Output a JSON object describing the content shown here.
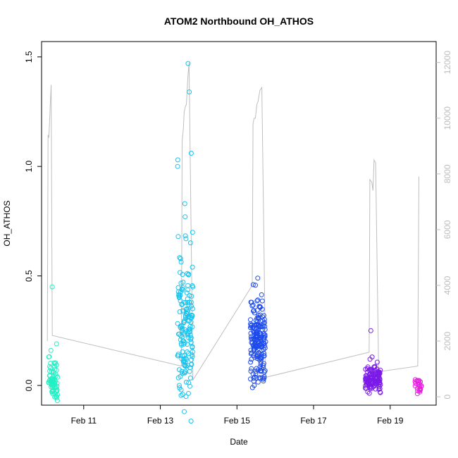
{
  "chart_data": {
    "type": "scatter",
    "title": "ATOM2 Northbound OH_ATHOS",
    "xlabel": "Date",
    "ylabel": "OH_ATHOS",
    "x_ticks": [
      "Feb 11",
      "Feb 13",
      "Feb 15",
      "Feb 17",
      "Feb 19"
    ],
    "x_tick_days": [
      11,
      13,
      15,
      17,
      19
    ],
    "xlim_days": [
      9.9,
      20.2
    ],
    "ylim": [
      -0.09,
      1.57
    ],
    "y_ticks": [
      0.0,
      0.5,
      1.0,
      1.5
    ],
    "y_tick_labels": [
      "0.0",
      "0.5",
      "1.0",
      "1.5"
    ],
    "y2_label_color": "#bebebe",
    "y2_lim": [
      -300,
      12750
    ],
    "y2_ticks": [
      0,
      2000,
      4000,
      6000,
      8000,
      10000,
      12000
    ],
    "y2_tick_labels": [
      "0",
      "2000",
      "4000",
      "6000",
      "8000",
      "10000",
      "12000"
    ],
    "altitude_line_color": "#bebebe",
    "segments": [
      {
        "t0": 10.08,
        "t1": 10.32,
        "color": "#22f0c4",
        "center": 0.03,
        "spread": 0.05,
        "highs": [
          0.19,
          0.16,
          0.13,
          0.45
        ],
        "lows": [
          -0.03,
          -0.02
        ],
        "n": 70
      },
      {
        "t0": 13.45,
        "t1": 13.85,
        "color": "#17c3ee",
        "center": 0.25,
        "spread": 0.17,
        "highs": [
          1.47,
          1.34,
          1.06,
          1.03,
          1.0,
          0.83,
          0.77,
          0.68,
          0.67
        ],
        "lows": [
          -0.02,
          0.0
        ],
        "n": 160
      },
      {
        "t0": 15.35,
        "t1": 15.75,
        "color": "#1d4bec",
        "center": 0.2,
        "spread": 0.08,
        "highs": [
          0.49,
          0.46,
          0.39,
          0.36
        ],
        "lows": [
          -0.01,
          0.02
        ],
        "n": 190
      },
      {
        "t0": 18.35,
        "t1": 18.75,
        "color": "#7b1be8",
        "center": 0.03,
        "spread": 0.03,
        "highs": [
          0.25,
          0.13
        ],
        "lows": [
          -0.03
        ],
        "n": 120
      },
      {
        "t0": 19.65,
        "t1": 19.82,
        "color": "#e81ee0",
        "center": 0.0,
        "spread": 0.015,
        "highs": [
          0.02
        ],
        "lows": [
          -0.03
        ],
        "n": 25
      }
    ],
    "altitude_profile": [
      [
        10.05,
        2000
      ],
      [
        10.07,
        9400
      ],
      [
        10.09,
        9300
      ],
      [
        10.11,
        9900
      ],
      [
        10.13,
        10600
      ],
      [
        10.15,
        11200
      ],
      [
        10.18,
        2200
      ],
      [
        13.55,
        1100
      ],
      [
        13.57,
        9200
      ],
      [
        13.6,
        9600
      ],
      [
        13.62,
        10200
      ],
      [
        13.65,
        10400
      ],
      [
        13.68,
        10500
      ],
      [
        13.72,
        11500
      ],
      [
        13.75,
        12000
      ],
      [
        13.85,
        600
      ],
      [
        15.4,
        4000
      ],
      [
        15.42,
        9800
      ],
      [
        15.45,
        10000
      ],
      [
        15.48,
        10000
      ],
      [
        15.52,
        10500
      ],
      [
        15.55,
        10600
      ],
      [
        15.6,
        11000
      ],
      [
        15.65,
        11100
      ],
      [
        15.75,
        700
      ],
      [
        18.45,
        1600
      ],
      [
        18.47,
        7800
      ],
      [
        18.52,
        7700
      ],
      [
        18.55,
        7400
      ],
      [
        18.58,
        8500
      ],
      [
        18.62,
        8400
      ],
      [
        18.7,
        900
      ],
      [
        19.72,
        1100
      ],
      [
        19.75,
        7900
      ]
    ],
    "grid": false,
    "legend": "none"
  }
}
